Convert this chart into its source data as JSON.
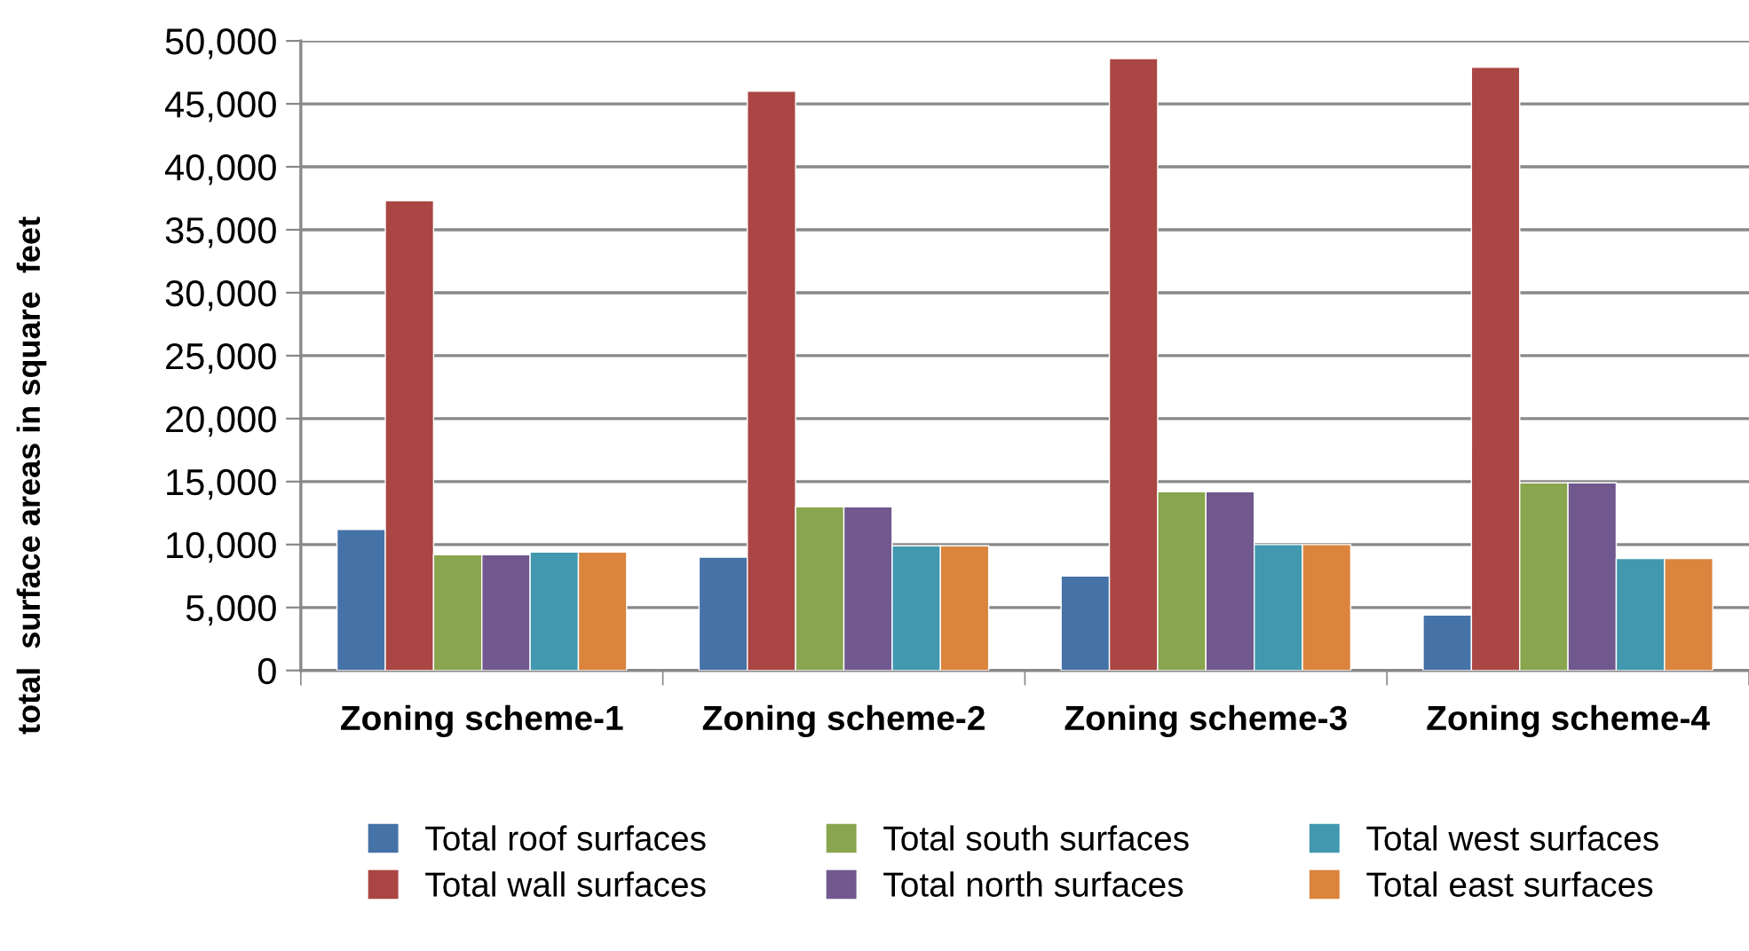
{
  "chart_data": {
    "type": "bar",
    "ylabel": "total  surface areas in square  feet",
    "categories": [
      "Zoning scheme-1",
      "Zoning scheme-2",
      "Zoning scheme-3",
      "Zoning scheme-4"
    ],
    "series": [
      {
        "name": "Total roof surfaces",
        "color": "#4572a7",
        "values": [
          11200,
          9000,
          7500,
          4400
        ]
      },
      {
        "name": "Total wall surfaces",
        "color": "#aa4643",
        "values": [
          37300,
          46000,
          48600,
          47900
        ]
      },
      {
        "name": "Total south surfaces",
        "color": "#89a54e",
        "values": [
          9200,
          13000,
          14200,
          14900
        ]
      },
      {
        "name": "Total north surfaces",
        "color": "#71588f",
        "values": [
          9200,
          13000,
          14200,
          14900
        ]
      },
      {
        "name": "Total west surfaces",
        "color": "#4198af",
        "values": [
          9400,
          9900,
          10000,
          8900
        ]
      },
      {
        "name": "Total east surfaces",
        "color": "#db843d",
        "values": [
          9400,
          9900,
          10000,
          8900
        ]
      }
    ],
    "ylim": [
      0,
      50000
    ],
    "yticks": [
      {
        "value": 0,
        "label": "0"
      },
      {
        "value": 5000,
        "label": "5,000"
      },
      {
        "value": 10000,
        "label": "10,000"
      },
      {
        "value": 15000,
        "label": "15,000"
      },
      {
        "value": 20000,
        "label": "20,000"
      },
      {
        "value": 25000,
        "label": "25,000"
      },
      {
        "value": 30000,
        "label": "30,000"
      },
      {
        "value": 35000,
        "label": "35,000"
      },
      {
        "value": 40000,
        "label": "40,000"
      },
      {
        "value": 45000,
        "label": "45,000"
      },
      {
        "value": 50000,
        "label": "50,000"
      }
    ],
    "grid": "y",
    "legend": "bottom"
  }
}
